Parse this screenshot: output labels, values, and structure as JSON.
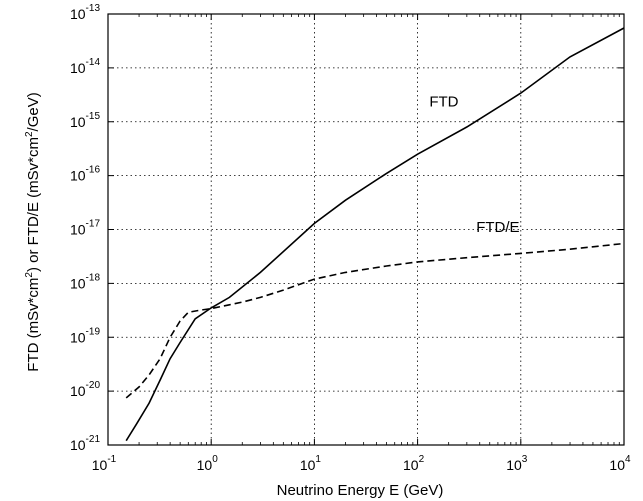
{
  "chart_data": {
    "type": "line",
    "title": "",
    "xlabel": "Neutrino Energy E (GeV)",
    "ylabel": {
      "parts": [
        "FTD (mSv*cm",
        "2",
        ") or FTD/E (mSv*cm",
        "2",
        "/GeV)"
      ]
    },
    "xscale": "log",
    "yscale": "log",
    "xlim": [
      0.1,
      10000
    ],
    "ylim": [
      1e-21,
      1e-13
    ],
    "grid": true,
    "x_ticks": [
      {
        "base": "10",
        "exp": "-1",
        "value": 0.1
      },
      {
        "base": "10",
        "exp": "0",
        "value": 1
      },
      {
        "base": "10",
        "exp": "1",
        "value": 10
      },
      {
        "base": "10",
        "exp": "2",
        "value": 100
      },
      {
        "base": "10",
        "exp": "3",
        "value": 1000
      },
      {
        "base": "10",
        "exp": "4",
        "value": 10000
      }
    ],
    "y_ticks": [
      {
        "base": "10",
        "exp": "-21",
        "value": 1e-21
      },
      {
        "base": "10",
        "exp": "-20",
        "value": 1e-20
      },
      {
        "base": "10",
        "exp": "-19",
        "value": 1e-19
      },
      {
        "base": "10",
        "exp": "-18",
        "value": 1e-18
      },
      {
        "base": "10",
        "exp": "-17",
        "value": 1e-17
      },
      {
        "base": "10",
        "exp": "-16",
        "value": 1e-16
      },
      {
        "base": "10",
        "exp": "-15",
        "value": 1e-15
      },
      {
        "base": "10",
        "exp": "-14",
        "value": 1e-14
      },
      {
        "base": "10",
        "exp": "-13",
        "value": 1e-13
      }
    ],
    "series": [
      {
        "name": "FTD",
        "style": "solid",
        "color": "#000000",
        "x": [
          0.15,
          0.19,
          0.25,
          0.32,
          0.4,
          0.5,
          0.7,
          1,
          1.5,
          3,
          10,
          20,
          50,
          100,
          300,
          1000,
          3000,
          10000
        ],
        "y": [
          1.2e-21,
          2.5e-21,
          6e-21,
          1.6e-20,
          4e-20,
          8e-20,
          2.2e-19,
          3.5e-19,
          5.5e-19,
          1.6e-18,
          1.3e-17,
          3.5e-17,
          1.1e-16,
          2.5e-16,
          8e-16,
          3.4e-15,
          1.6e-14,
          5.5e-14
        ]
      },
      {
        "name": "FTD/E",
        "style": "dashed",
        "color": "#000000",
        "x": [
          0.15,
          0.2,
          0.25,
          0.32,
          0.4,
          0.5,
          0.6,
          0.8,
          1,
          1.5,
          2,
          3,
          5,
          10,
          20,
          50,
          100,
          300,
          1000,
          3000,
          10000
        ],
        "y": [
          7.5e-21,
          1.2e-20,
          2e-20,
          4e-20,
          1e-19,
          2e-19,
          2.9e-19,
          3.2e-19,
          3.4e-19,
          4e-19,
          4.5e-19,
          5.5e-19,
          7.5e-19,
          1.2e-18,
          1.6e-18,
          2.1e-18,
          2.5e-18,
          3e-18,
          3.6e-18,
          4.3e-18,
          5.5e-18
        ]
      }
    ],
    "annotations": [
      {
        "text": "FTD",
        "series": "FTD",
        "x": 180,
        "y": 1.9e-15
      },
      {
        "text": "FTD/E",
        "series": "FTD/E",
        "x": 600,
        "y": 9e-18
      }
    ]
  }
}
